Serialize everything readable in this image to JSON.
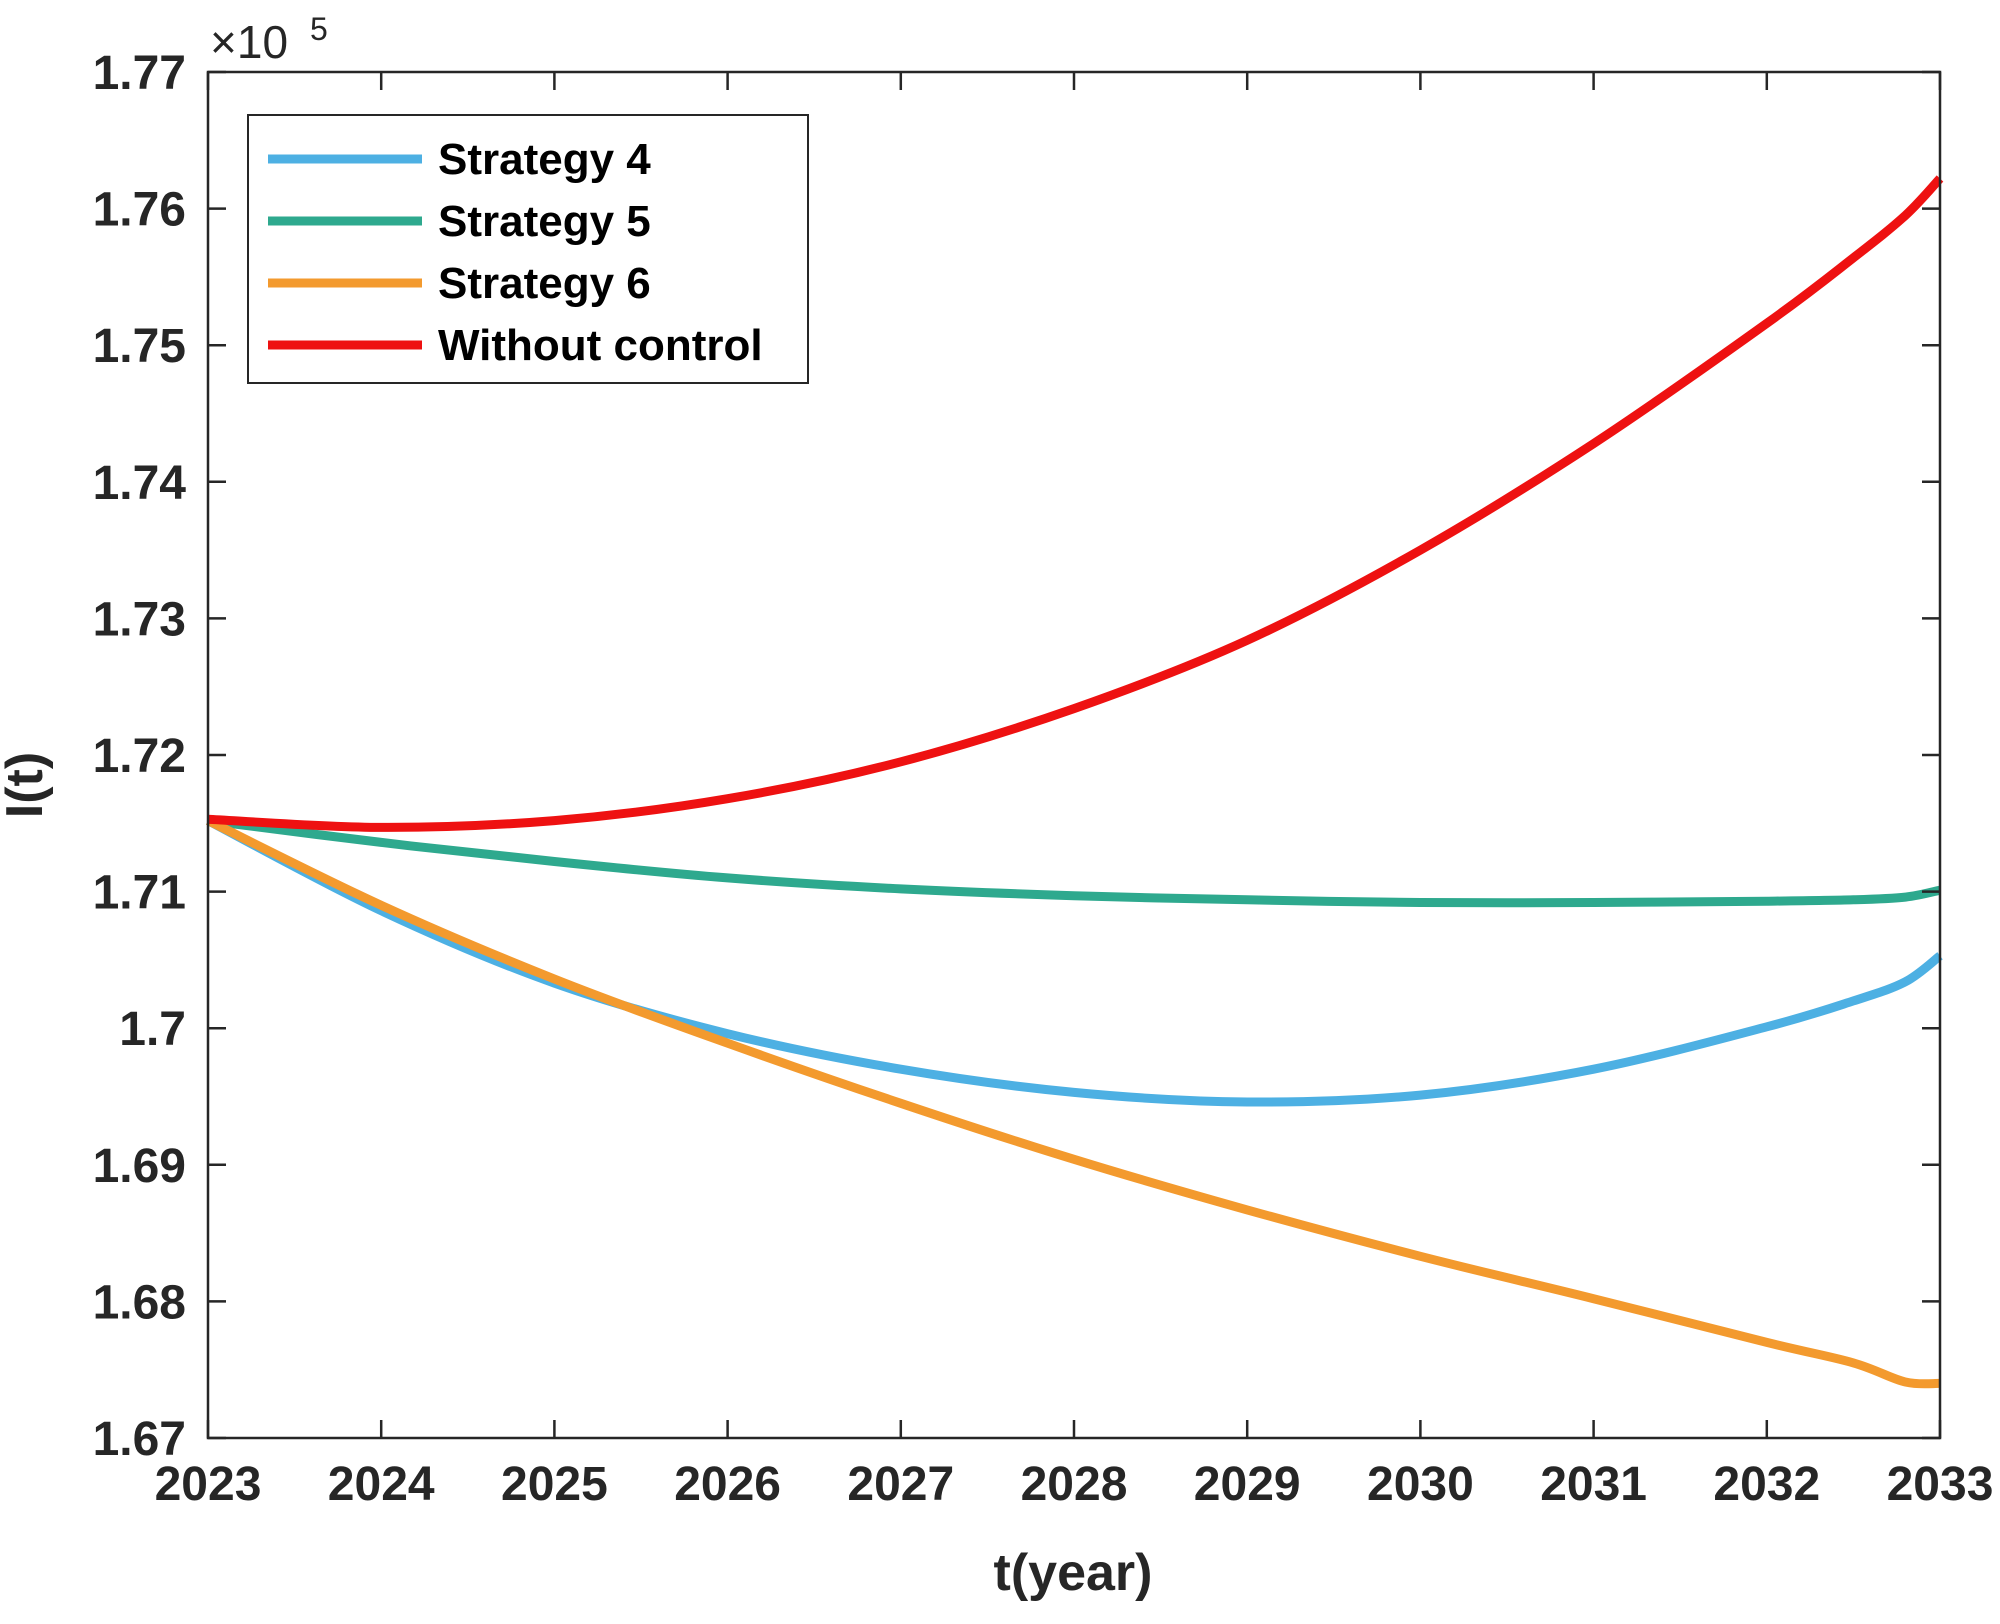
{
  "chart_data": {
    "type": "line",
    "title": "",
    "xlabel": "t(year)",
    "ylabel": "I(t)",
    "xlim": [
      2023,
      2033
    ],
    "ylim": [
      1.67,
      1.77
    ],
    "y_multiplier": "×10",
    "y_exponent": "5",
    "xticks": [
      "2023",
      "2024",
      "2025",
      "2026",
      "2027",
      "2028",
      "2029",
      "2030",
      "2031",
      "2032",
      "2033"
    ],
    "yticks": [
      "1.67",
      "1.68",
      "1.69",
      "1.7",
      "1.71",
      "1.72",
      "1.73",
      "1.74",
      "1.75",
      "1.76",
      "1.77"
    ],
    "x": [
      2023,
      2024,
      2025,
      2026,
      2027,
      2028,
      2029,
      2030,
      2031,
      2032,
      2032.5,
      2032.8,
      2033
    ],
    "series": [
      {
        "name": "Strategy 4",
        "color": "#4DB0E3",
        "values": [
          1.7152,
          1.7086,
          1.7033,
          1.6996,
          1.697,
          1.6953,
          1.6946,
          1.6951,
          1.697,
          1.7001,
          1.702,
          1.7034,
          1.7053
        ]
      },
      {
        "name": "Strategy 5",
        "color": "#2EA98E",
        "values": [
          1.7152,
          1.7136,
          1.7122,
          1.711,
          1.7102,
          1.7097,
          1.7094,
          1.7092,
          1.7092,
          1.7093,
          1.7094,
          1.7096,
          1.7101
        ]
      },
      {
        "name": "Strategy 6",
        "color": "#F39A2E",
        "values": [
          1.7152,
          1.709,
          1.7036,
          1.6989,
          1.6945,
          1.6904,
          1.6867,
          1.6833,
          1.6802,
          1.677,
          1.6755,
          1.6741,
          1.674
        ]
      },
      {
        "name": "Without control",
        "color": "#EE1111",
        "values": [
          1.7153,
          1.7147,
          1.7152,
          1.7168,
          1.7195,
          1.7234,
          1.7284,
          1.735,
          1.7428,
          1.7516,
          1.7564,
          1.7595,
          1.7622
        ]
      }
    ],
    "legend_position": "top-left",
    "grid": false
  }
}
